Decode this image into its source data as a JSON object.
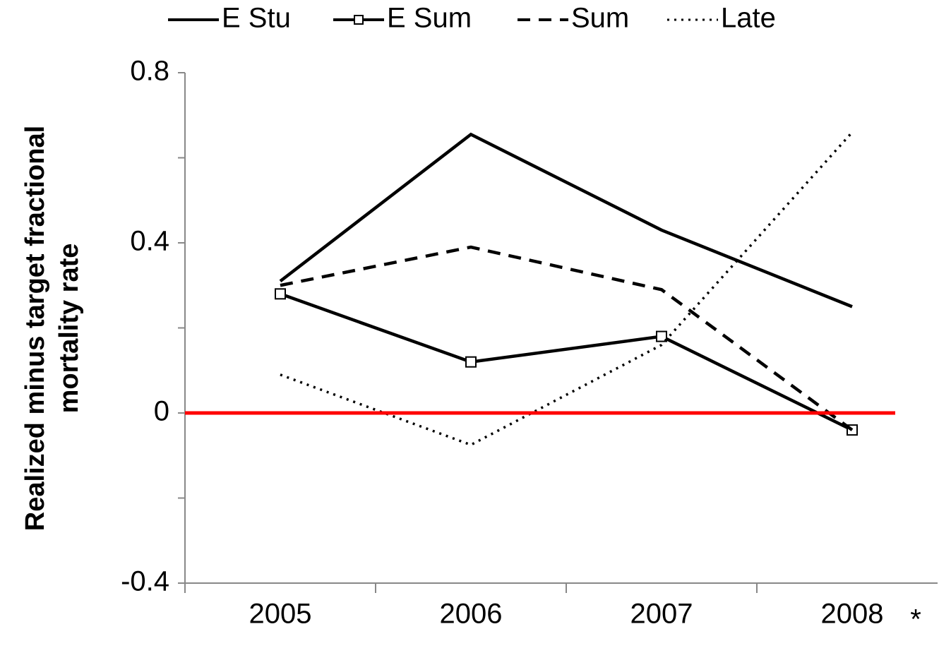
{
  "chart_data": {
    "type": "line",
    "ylabel": [
      "Realized minus target fractional",
      "mortality rate"
    ],
    "categories": [
      "2005",
      "2006",
      "2007",
      "2008"
    ],
    "annotation": "*",
    "series": [
      {
        "name": "E Stu",
        "color": "#000000",
        "style": "solid",
        "values": [
          0.31,
          0.655,
          0.43,
          0.25
        ]
      },
      {
        "name": "E Sum",
        "color": "#000000",
        "style": "solid",
        "marker": "square",
        "values": [
          0.28,
          0.12,
          0.18,
          -0.04
        ]
      },
      {
        "name": "Sum",
        "color": "#000000",
        "style": "dashed",
        "values": [
          0.3,
          0.39,
          0.29,
          -0.04
        ]
      },
      {
        "name": "Late",
        "color": "#000000",
        "style": "dotted",
        "values": [
          0.09,
          -0.075,
          0.16,
          0.66
        ]
      }
    ],
    "reference_line": {
      "value": 0,
      "color": "#ff0000"
    },
    "ylim": [
      -0.4,
      0.8
    ],
    "yticks": [
      -0.4,
      0,
      0.4,
      0.8
    ],
    "yminor_ticks": [
      -0.2,
      0.2,
      0.6
    ],
    "grid": false,
    "legend": "top"
  }
}
